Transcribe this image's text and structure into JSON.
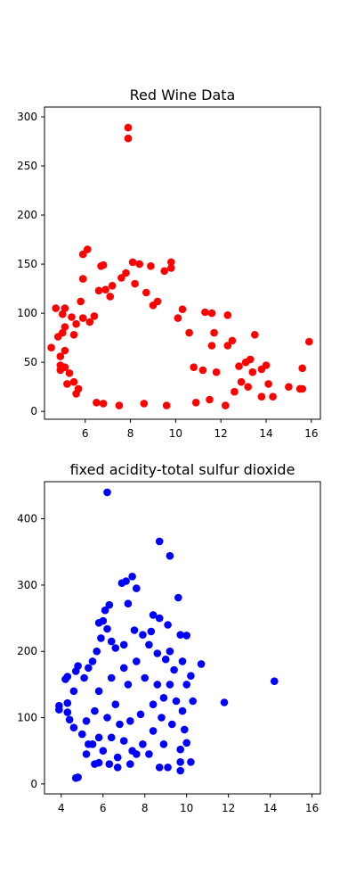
{
  "chart_data": [
    {
      "type": "scatter",
      "title": "Red Wine Data",
      "xlabel": "",
      "ylabel": "",
      "xlim": [
        4.2,
        16.4
      ],
      "ylim": [
        -8,
        310
      ],
      "x_ticks": [
        6,
        8,
        10,
        12,
        14,
        16
      ],
      "y_ticks": [
        0,
        50,
        100,
        150,
        200,
        250,
        300
      ],
      "color": "#ff0000",
      "grid": false,
      "series": [
        {
          "points": [
            [
              7.9,
              289
            ],
            [
              7.9,
              278
            ],
            [
              6.1,
              165
            ],
            [
              5.9,
              160
            ],
            [
              8.1,
              152
            ],
            [
              8.4,
              150
            ],
            [
              9.8,
              152
            ],
            [
              9.8,
              146
            ],
            [
              9.5,
              143
            ],
            [
              8.9,
              148
            ],
            [
              6.8,
              149
            ],
            [
              6.7,
              148
            ],
            [
              7.8,
              141
            ],
            [
              7.6,
              136
            ],
            [
              5.9,
              135
            ],
            [
              7.2,
              128
            ],
            [
              6.9,
              124
            ],
            [
              6.6,
              123
            ],
            [
              7.1,
              117
            ],
            [
              8.2,
              130
            ],
            [
              8.7,
              121
            ],
            [
              9.2,
              112
            ],
            [
              9.0,
              108
            ],
            [
              10.3,
              104
            ],
            [
              11.3,
              101
            ],
            [
              11.6,
              100
            ],
            [
              12.3,
              98
            ],
            [
              4.7,
              105
            ],
            [
              5.1,
              105
            ],
            [
              5.0,
              99
            ],
            [
              5.4,
              96
            ],
            [
              5.9,
              95
            ],
            [
              6.4,
              97
            ],
            [
              5.8,
              112
            ],
            [
              6.2,
              91
            ],
            [
              5.6,
              89
            ],
            [
              5.1,
              86
            ],
            [
              5.0,
              80
            ],
            [
              4.8,
              76
            ],
            [
              5.5,
              78
            ],
            [
              4.5,
              65
            ],
            [
              5.1,
              62
            ],
            [
              4.9,
              56
            ],
            [
              4.9,
              47
            ],
            [
              5.1,
              45
            ],
            [
              4.9,
              42
            ],
            [
              5.3,
              39
            ],
            [
              5.2,
              28
            ],
            [
              5.5,
              30
            ],
            [
              5.7,
              23
            ],
            [
              5.6,
              18
            ],
            [
              11.7,
              80
            ],
            [
              11.6,
              67
            ],
            [
              12.5,
              72
            ],
            [
              12.3,
              67
            ],
            [
              13.5,
              78
            ],
            [
              13.1,
              50
            ],
            [
              12.8,
              46
            ],
            [
              13.3,
              53
            ],
            [
              13.8,
              43
            ],
            [
              14.0,
              47
            ],
            [
              13.4,
              40
            ],
            [
              15.6,
              44
            ],
            [
              15.9,
              71
            ],
            [
              15.0,
              25
            ],
            [
              15.6,
              23
            ],
            [
              15.5,
              23
            ],
            [
              13.8,
              15
            ],
            [
              14.3,
              15
            ],
            [
              12.2,
              6
            ],
            [
              10.8,
              45
            ],
            [
              10.6,
              80
            ],
            [
              10.1,
              95
            ],
            [
              11.2,
              42
            ],
            [
              11.8,
              40
            ],
            [
              12.9,
              30
            ],
            [
              13.2,
              25
            ],
            [
              14.1,
              28
            ],
            [
              12.6,
              20
            ],
            [
              11.5,
              12
            ],
            [
              10.9,
              9
            ],
            [
              9.6,
              6
            ],
            [
              7.5,
              6
            ],
            [
              6.8,
              8
            ],
            [
              6.5,
              9
            ],
            [
              8.6,
              8
            ]
          ]
        }
      ]
    },
    {
      "type": "scatter",
      "title": "fixed acidity-total sulfur dioxide",
      "xlabel": "",
      "ylabel": "",
      "xlim": [
        3.2,
        16.4
      ],
      "ylim": [
        -15,
        456
      ],
      "x_ticks": [
        4,
        6,
        8,
        10,
        12,
        14,
        16
      ],
      "y_ticks": [
        0,
        100,
        200,
        300,
        400
      ],
      "color": "#0000ff",
      "grid": false,
      "series": [
        {
          "points": [
            [
              6.2,
              440
            ],
            [
              8.7,
              366
            ],
            [
              9.2,
              344
            ],
            [
              7.4,
              313
            ],
            [
              6.9,
              303
            ],
            [
              7.1,
              306
            ],
            [
              7.6,
              295
            ],
            [
              9.6,
              281
            ],
            [
              7.2,
              272
            ],
            [
              6.3,
              270
            ],
            [
              6.1,
              262
            ],
            [
              8.4,
              255
            ],
            [
              8.7,
              250
            ],
            [
              9.1,
              240
            ],
            [
              9.7,
              225
            ],
            [
              10.0,
              224
            ],
            [
              10.7,
              181
            ],
            [
              9.8,
              185
            ],
            [
              10.2,
              163
            ],
            [
              10.0,
              150
            ],
            [
              10.3,
              125
            ],
            [
              11.8,
              123
            ],
            [
              14.2,
              155
            ],
            [
              9.8,
              110
            ],
            [
              9.9,
              82
            ],
            [
              10.0,
              62
            ],
            [
              9.7,
              52
            ],
            [
              9.7,
              33
            ],
            [
              10.2,
              33
            ],
            [
              9.7,
              20
            ],
            [
              9.1,
              25
            ],
            [
              8.7,
              25
            ],
            [
              7.6,
              45
            ],
            [
              7.3,
              30
            ],
            [
              6.7,
              25
            ],
            [
              6.3,
              30
            ],
            [
              5.8,
              32
            ],
            [
              5.6,
              30
            ],
            [
              4.8,
              10
            ],
            [
              4.7,
              9
            ],
            [
              5.2,
              45
            ],
            [
              5.3,
              60
            ],
            [
              5.0,
              75
            ],
            [
              4.6,
              85
            ],
            [
              4.4,
              97
            ],
            [
              4.3,
              108
            ],
            [
              3.9,
              112
            ],
            [
              3.9,
              118
            ],
            [
              4.3,
              122
            ],
            [
              4.6,
              140
            ],
            [
              4.2,
              158
            ],
            [
              4.3,
              162
            ],
            [
              4.7,
              170
            ],
            [
              4.8,
              178
            ],
            [
              5.1,
              160
            ],
            [
              5.3,
              175
            ],
            [
              5.5,
              185
            ],
            [
              5.7,
              200
            ],
            [
              5.9,
              220
            ],
            [
              5.8,
              243
            ],
            [
              6.0,
              246
            ],
            [
              6.2,
              234
            ],
            [
              6.4,
              215
            ],
            [
              6.6,
              205
            ],
            [
              7.0,
              210
            ],
            [
              7.5,
              232
            ],
            [
              7.9,
              225
            ],
            [
              8.2,
              210
            ],
            [
              8.6,
              197
            ],
            [
              9.0,
              188
            ],
            [
              9.4,
              172
            ],
            [
              9.2,
              150
            ],
            [
              8.9,
              130
            ],
            [
              8.4,
              120
            ],
            [
              7.8,
              105
            ],
            [
              7.3,
              95
            ],
            [
              6.8,
              90
            ],
            [
              6.2,
              100
            ],
            [
              5.6,
              110
            ],
            [
              5.2,
              95
            ],
            [
              5.8,
              140
            ],
            [
              6.4,
              160
            ],
            [
              7.0,
              175
            ],
            [
              7.6,
              185
            ],
            [
              8.0,
              160
            ],
            [
              8.6,
              150
            ],
            [
              8.8,
              100
            ],
            [
              8.4,
              80
            ],
            [
              7.9,
              60
            ],
            [
              7.0,
              65
            ],
            [
              6.4,
              70
            ],
            [
              5.8,
              70
            ],
            [
              5.5,
              60
            ],
            [
              6.0,
              50
            ],
            [
              6.7,
              40
            ],
            [
              7.4,
              50
            ],
            [
              8.2,
              45
            ],
            [
              8.9,
              60
            ],
            [
              9.3,
              90
            ],
            [
              9.5,
              125
            ],
            [
              9.2,
              200
            ],
            [
              8.3,
              230
            ],
            [
              7.2,
              150
            ],
            [
              6.6,
              120
            ]
          ]
        }
      ]
    }
  ]
}
